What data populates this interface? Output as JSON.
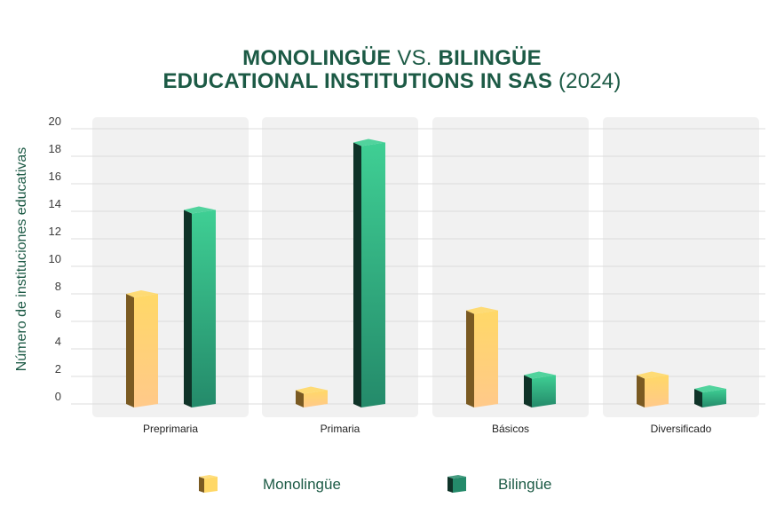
{
  "title": {
    "line1": {
      "bold_a": "MONOLINGÜE",
      "light": " VS. ",
      "bold_b": "BILINGÜE"
    },
    "line2": {
      "bold": "EDUCATIONAL INSTITUTIONS IN SAS",
      "light": " (2024)"
    }
  },
  "chart_data": {
    "type": "bar",
    "title": "MONOLINGÜE VS. BILINGÜE EDUCATIONAL INSTITUTIONS IN SAS (2024)",
    "xlabel": "",
    "ylabel": "Número de instituciones educativas",
    "ylim": [
      0,
      20
    ],
    "yticks": [
      0,
      2,
      4,
      6,
      8,
      10,
      12,
      14,
      16,
      18,
      20
    ],
    "grid": true,
    "legend": "bottom",
    "categories": [
      "Preprimaria",
      "Primaria",
      "Básicos",
      "Diversificado"
    ],
    "series": [
      {
        "name": "Monolingüe",
        "values": [
          8,
          1,
          6.8,
          2.1
        ],
        "color": "#ffd36a"
      },
      {
        "name": "Bilingüe",
        "values": [
          14.1,
          19,
          2.1,
          1.1
        ],
        "color": "#2e9a73"
      }
    ]
  },
  "colors": {
    "title": "#1c5a45",
    "panel": "#f1f1f1",
    "gridline": "#dcdcdc",
    "mono_front_top": "#ffd867",
    "mono_front_bottom": "#ffc98a",
    "mono_side": "#7a5a22",
    "bi_front_top": "#3fcf94",
    "bi_front_bottom": "#248a6a",
    "bi_side": "#0f3328"
  }
}
